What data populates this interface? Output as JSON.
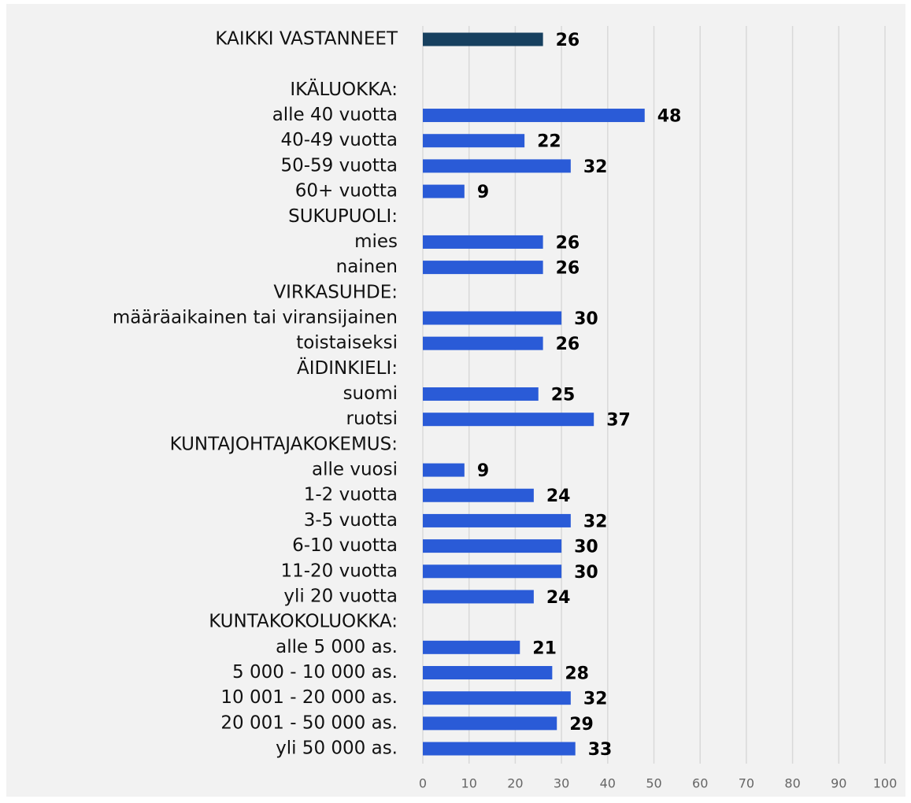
{
  "chart_data": {
    "type": "hbar",
    "categories": [
      "KAIKKI VASTANNEET",
      null,
      "IKÄLUOKKA:",
      "alle 40 vuotta",
      "40-49 vuotta",
      "50-59 vuotta",
      "60+ vuotta",
      "SUKUPUOLI:",
      "mies",
      "nainen",
      "VIRKASUHDE:",
      "määräaikainen tai viransijainen",
      "toistaiseksi",
      "ÄIDINKIELI:",
      "suomi",
      "ruotsi",
      "KUNTAJOHTAJAKOKEMUS:",
      "alle vuosi",
      "1-2 vuotta",
      "3-5 vuotta",
      "6-10 vuotta",
      "11-20 vuotta",
      "yli 20 vuotta",
      "KUNTAKOKOLUOKKA:",
      "alle 5 000 as.",
      "5 000 - 10 000 as.",
      "10 001 - 20 000 as.",
      "20 001 - 50 000 as.",
      "yli 50 000 as."
    ],
    "values": [
      26,
      null,
      null,
      48,
      22,
      32,
      9,
      null,
      26,
      26,
      null,
      30,
      26,
      null,
      25,
      37,
      null,
      9,
      24,
      32,
      30,
      30,
      24,
      null,
      21,
      28,
      32,
      29,
      33
    ],
    "colors": [
      "#17405f",
      null,
      null,
      "#2a5bd7",
      "#2a5bd7",
      "#2a5bd7",
      "#2a5bd7",
      null,
      "#2a5bd7",
      "#2a5bd7",
      null,
      "#2a5bd7",
      "#2a5bd7",
      null,
      "#2a5bd7",
      "#2a5bd7",
      null,
      "#2a5bd7",
      "#2a5bd7",
      "#2a5bd7",
      "#2a5bd7",
      "#2a5bd7",
      "#2a5bd7",
      null,
      "#2a5bd7",
      "#2a5bd7",
      "#2a5bd7",
      "#2a5bd7",
      "#2a5bd7"
    ],
    "xlim": [
      0,
      100
    ],
    "xticks": [
      0,
      10,
      20,
      30,
      40,
      50,
      60,
      70,
      80,
      90,
      100
    ],
    "grid": true
  }
}
